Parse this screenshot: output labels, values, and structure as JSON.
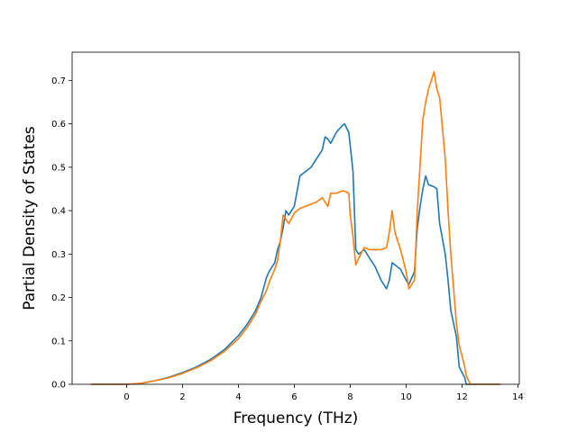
{
  "chart_data": {
    "type": "line",
    "xlabel": "Frequency (THz)",
    "ylabel": "Partial Density of States",
    "xlim": [
      -1.95,
      14.05
    ],
    "ylim": [
      0,
      0.765
    ],
    "xticks": [
      0,
      2,
      4,
      6,
      8,
      10,
      12,
      14
    ],
    "yticks": [
      0.0,
      0.1,
      0.2,
      0.3,
      0.4,
      0.5,
      0.6,
      0.7
    ],
    "xtick_labels": [
      "0",
      "2",
      "4",
      "6",
      "8",
      "10",
      "12",
      "14"
    ],
    "ytick_labels": [
      "0.0",
      "0.1",
      "0.2",
      "0.3",
      "0.4",
      "0.5",
      "0.6",
      "0.7"
    ],
    "grid": false,
    "legend": "none",
    "series": [
      {
        "color": "#1f77b4",
        "x": [
          -1.25,
          0,
          0.5,
          1,
          1.5,
          2,
          2.5,
          3,
          3.5,
          4,
          4.3,
          4.6,
          4.8,
          5.0,
          5.1,
          5.3,
          5.4,
          5.5,
          5.6,
          5.7,
          5.8,
          6.0,
          6.2,
          6.4,
          6.6,
          6.8,
          7.0,
          7.1,
          7.2,
          7.3,
          7.5,
          7.7,
          7.8,
          7.95,
          8.0,
          8.1,
          8.2,
          8.3,
          8.5,
          8.7,
          8.9,
          9.1,
          9.3,
          9.4,
          9.5,
          9.6,
          9.8,
          10.0,
          10.1,
          10.3,
          10.4,
          10.5,
          10.6,
          10.7,
          10.8,
          11.0,
          11.1,
          11.2,
          11.4,
          11.5,
          11.6,
          11.8,
          11.9,
          12.1,
          12.15,
          12.3,
          13.35
        ],
        "y": [
          0,
          0,
          0.002,
          0.008,
          0.016,
          0.027,
          0.04,
          0.057,
          0.08,
          0.112,
          0.137,
          0.168,
          0.198,
          0.245,
          0.26,
          0.28,
          0.31,
          0.33,
          0.36,
          0.4,
          0.39,
          0.41,
          0.48,
          0.49,
          0.5,
          0.52,
          0.54,
          0.57,
          0.565,
          0.555,
          0.58,
          0.595,
          0.6,
          0.58,
          0.55,
          0.49,
          0.31,
          0.3,
          0.31,
          0.29,
          0.27,
          0.24,
          0.22,
          0.24,
          0.28,
          0.275,
          0.265,
          0.24,
          0.23,
          0.26,
          0.36,
          0.41,
          0.45,
          0.48,
          0.46,
          0.455,
          0.45,
          0.37,
          0.3,
          0.24,
          0.17,
          0.11,
          0.04,
          0.015,
          0,
          0,
          0
        ]
      },
      {
        "color": "#ff7f0e",
        "x": [
          -1.25,
          0,
          0.5,
          1,
          1.5,
          2,
          2.5,
          3,
          3.5,
          4,
          4.3,
          4.6,
          4.8,
          5.0,
          5.1,
          5.3,
          5.4,
          5.5,
          5.6,
          5.7,
          5.8,
          6.0,
          6.2,
          6.4,
          6.6,
          6.8,
          7.0,
          7.2,
          7.3,
          7.5,
          7.7,
          7.8,
          7.95,
          8.0,
          8.1,
          8.2,
          8.3,
          8.5,
          8.7,
          8.9,
          9.1,
          9.3,
          9.4,
          9.5,
          9.6,
          9.8,
          10.0,
          10.1,
          10.3,
          10.4,
          10.6,
          10.7,
          10.8,
          11.0,
          11.1,
          11.2,
          11.4,
          11.5,
          11.6,
          11.8,
          11.9,
          12.1,
          12.15,
          12.3,
          13.35
        ],
        "y": [
          0,
          0,
          0.002,
          0.008,
          0.015,
          0.025,
          0.038,
          0.054,
          0.076,
          0.105,
          0.13,
          0.16,
          0.19,
          0.215,
          0.235,
          0.265,
          0.285,
          0.33,
          0.39,
          0.38,
          0.37,
          0.395,
          0.405,
          0.41,
          0.415,
          0.42,
          0.43,
          0.41,
          0.44,
          0.44,
          0.445,
          0.445,
          0.44,
          0.39,
          0.34,
          0.275,
          0.29,
          0.315,
          0.31,
          0.31,
          0.31,
          0.315,
          0.35,
          0.4,
          0.35,
          0.31,
          0.26,
          0.22,
          0.24,
          0.4,
          0.61,
          0.65,
          0.68,
          0.72,
          0.68,
          0.66,
          0.52,
          0.4,
          0.3,
          0.14,
          0.09,
          0.04,
          0.02,
          0,
          0
        ]
      }
    ]
  }
}
